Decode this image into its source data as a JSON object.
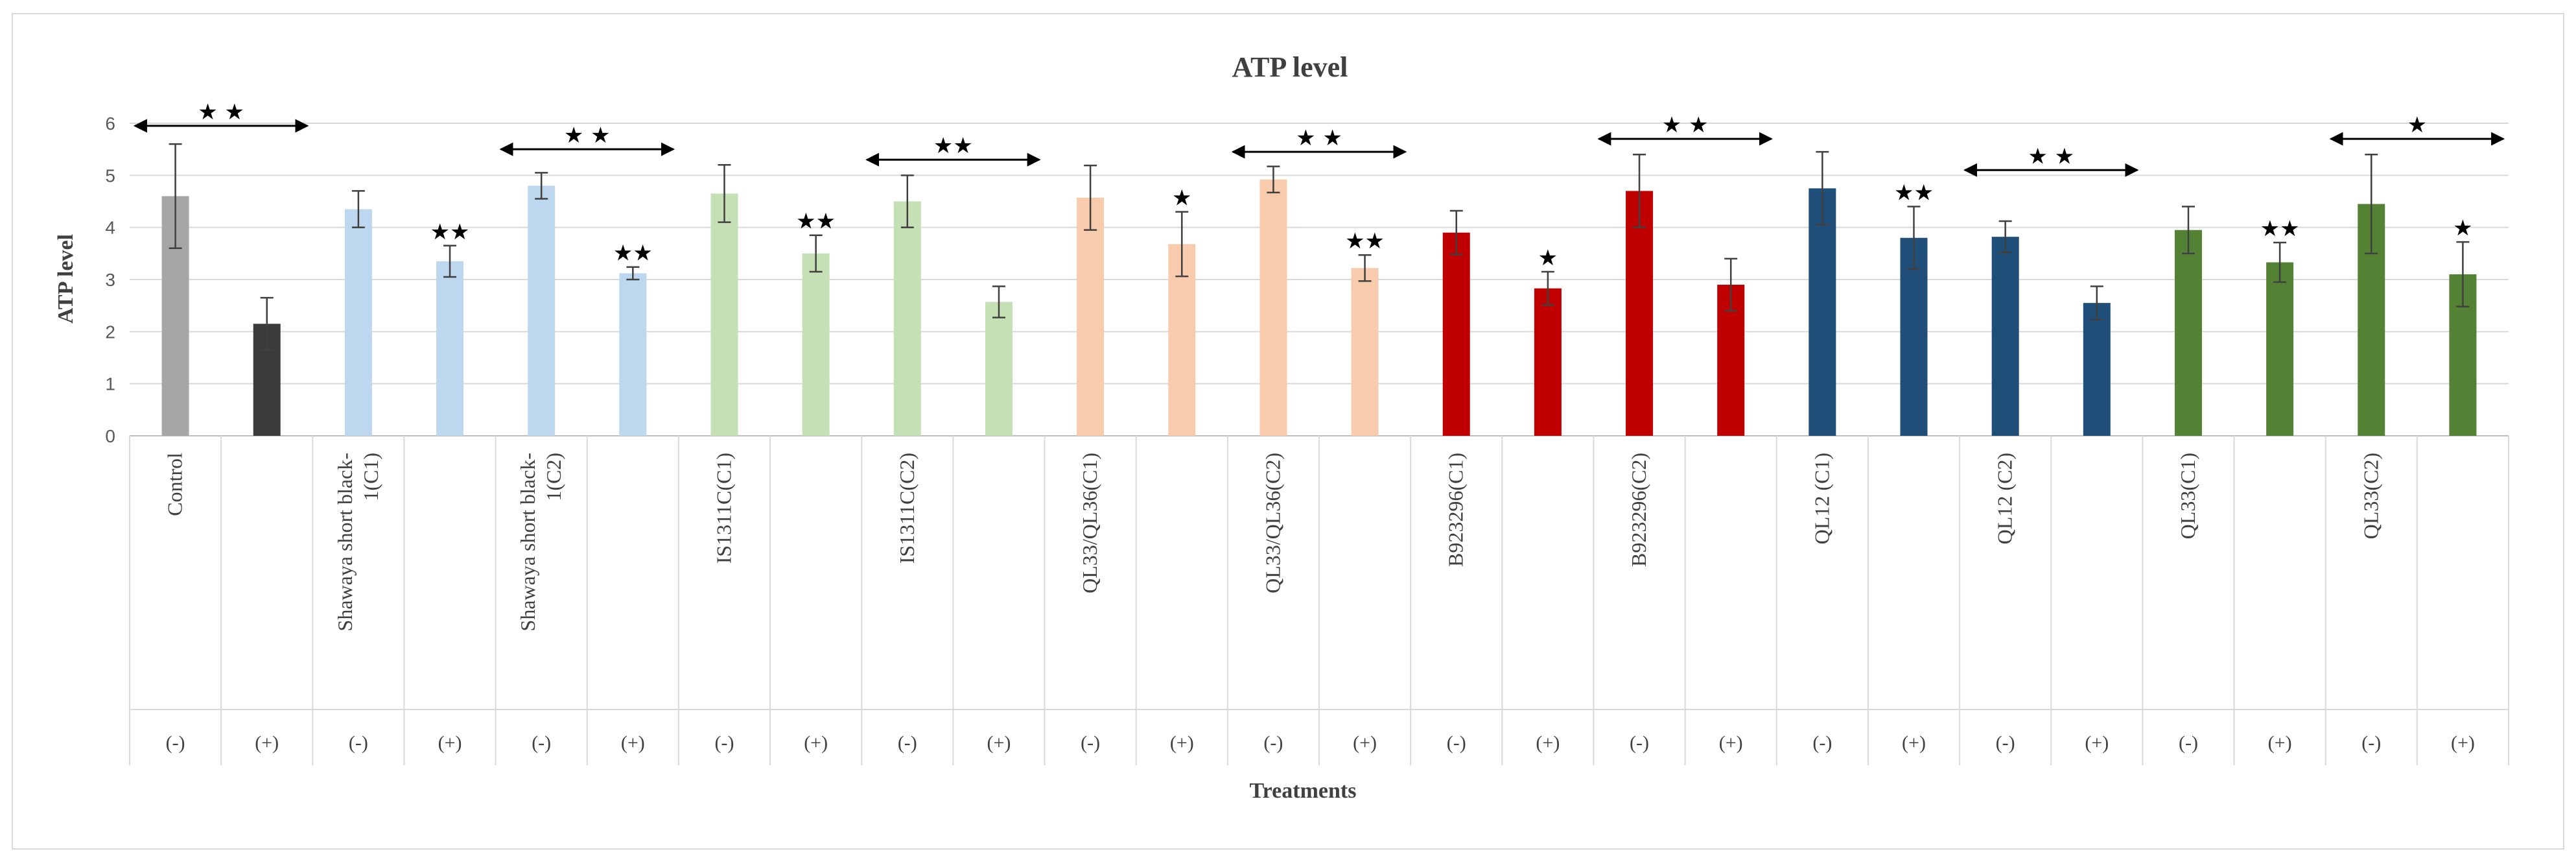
{
  "chart_data": {
    "type": "bar",
    "title": "ATP level",
    "xlabel": "Treatments",
    "ylabel": "ATP level",
    "ylim": [
      0,
      6
    ],
    "yticks": [
      "0",
      "1",
      "2",
      "3",
      "4",
      "5",
      "6"
    ],
    "gridlines": true,
    "legend": "none",
    "categories": [
      "Control",
      "",
      "Shawaya short black-1(C1)",
      "",
      "Shawaya short black-1(C2)",
      "",
      "IS1311C(C1)",
      "",
      "IS1311C(C2)",
      "",
      "QL33/QL36(C1)",
      "",
      "QL33/QL36(C2)",
      "",
      "B923296(C1)",
      "",
      "B923296(C2)",
      "",
      "QL12 (C1)",
      "",
      "QL12 (C2)",
      "",
      "QL33(C1)",
      "",
      "QL33(C2)",
      ""
    ],
    "treatment_signs": [
      "(-)",
      "(+)",
      "(-)",
      "(+)",
      "(-)",
      "(+)",
      "(-)",
      "(+)",
      "(-)",
      "(+)",
      "(-)",
      "(+)",
      "(-)",
      "(+)",
      "(-)",
      "(+)",
      "(-)",
      "(+)",
      "(-)",
      "(+)",
      "(-)",
      "(+)",
      "(-)",
      "(+)",
      "(-)",
      "(+)"
    ],
    "values": [
      4.6,
      2.15,
      4.35,
      3.35,
      4.8,
      3.12,
      4.65,
      3.5,
      4.5,
      2.57,
      4.57,
      3.68,
      4.92,
      3.22,
      3.9,
      2.83,
      4.7,
      2.9,
      4.75,
      3.8,
      3.82,
      2.55,
      3.95,
      3.33,
      4.45,
      3.1
    ],
    "errors": [
      1.0,
      0.5,
      0.35,
      0.3,
      0.25,
      0.12,
      0.55,
      0.35,
      0.5,
      0.3,
      0.62,
      0.62,
      0.25,
      0.25,
      0.42,
      0.32,
      0.7,
      0.5,
      0.7,
      0.6,
      0.3,
      0.32,
      0.45,
      0.38,
      0.95,
      0.62
    ],
    "colors": [
      "#a6a6a6",
      "#3b3b3b",
      "#bdd7ee",
      "#bdd7ee",
      "#bdd7ee",
      "#bdd7ee",
      "#c5e0b4",
      "#c5e0b4",
      "#c5e0b4",
      "#c5e0b4",
      "#f8cbad",
      "#f8cbad",
      "#f8cbad",
      "#f8cbad",
      "#c00000",
      "#c00000",
      "#c00000",
      "#c00000",
      "#1f4e79",
      "#1f4e79",
      "#1f4e79",
      "#1f4e79",
      "#548235",
      "#548235",
      "#548235",
      "#548235"
    ],
    "bar_stars": [
      "",
      "",
      "",
      "★★",
      "",
      "★★",
      "",
      "★★",
      "",
      "",
      "",
      "★",
      "",
      "★★",
      "",
      "★",
      "",
      "",
      "",
      "★★",
      "",
      "",
      "",
      "★★",
      "",
      "★"
    ],
    "brackets": [
      {
        "from": 0,
        "to": 1,
        "at": 5.95,
        "label": "★ ★"
      },
      {
        "from": 4,
        "to": 5,
        "at": 5.5,
        "label": "★ ★"
      },
      {
        "from": 8,
        "to": 9,
        "at": 5.3,
        "label": "★★"
      },
      {
        "from": 12,
        "to": 13,
        "at": 5.45,
        "label": "★ ★"
      },
      {
        "from": 16,
        "to": 17,
        "at": 5.7,
        "label": "★ ★"
      },
      {
        "from": 20,
        "to": 21,
        "at": 5.1,
        "label": "★ ★"
      },
      {
        "from": 24,
        "to": 25,
        "at": 5.7,
        "label": "★"
      }
    ]
  }
}
